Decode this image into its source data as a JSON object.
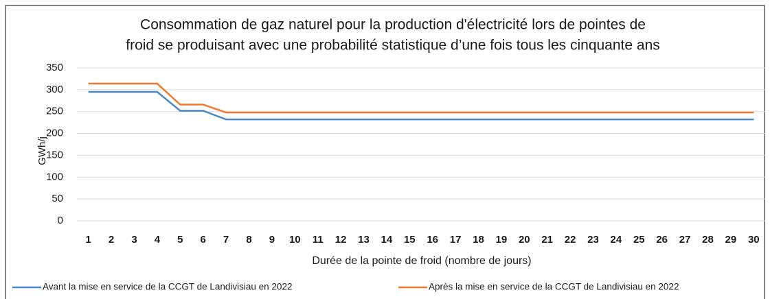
{
  "chart_data": {
    "type": "line",
    "title": [
      "Consommation de gaz naturel pour la production d'électricité lors de pointes de",
      "froid se produisant avec une probabilité statistique d’une fois tous les cinquante ans"
    ],
    "x_label": "Durée de la pointe de froid (nombre de jours)",
    "y_label": "GWh/j",
    "categories": [
      1,
      2,
      3,
      4,
      5,
      6,
      7,
      8,
      9,
      10,
      11,
      12,
      13,
      14,
      15,
      16,
      17,
      18,
      19,
      20,
      21,
      22,
      23,
      24,
      25,
      26,
      27,
      28,
      29,
      30
    ],
    "series": [
      {
        "name": "Avant la mise en service de la CCGT de Landivisiau en 2022",
        "color": "#4a86c8",
        "values": [
          295,
          295,
          295,
          295,
          252,
          252,
          232,
          232,
          232,
          232,
          232,
          232,
          232,
          232,
          232,
          232,
          232,
          232,
          232,
          232,
          232,
          232,
          232,
          232,
          232,
          232,
          232,
          232,
          232,
          232
        ]
      },
      {
        "name": "Après la mise en service de la CCGT de Landivisiau en 2022",
        "color": "#f07a32",
        "values": [
          314,
          314,
          314,
          314,
          266,
          266,
          248,
          248,
          248,
          248,
          248,
          248,
          248,
          248,
          248,
          248,
          248,
          248,
          248,
          248,
          248,
          248,
          248,
          248,
          248,
          248,
          248,
          248,
          248,
          248
        ]
      }
    ],
    "ylim": [
      0,
      350
    ],
    "yticks": [
      0,
      50,
      100,
      150,
      200,
      250,
      300,
      350
    ],
    "grid": true,
    "legend": "bottom"
  }
}
